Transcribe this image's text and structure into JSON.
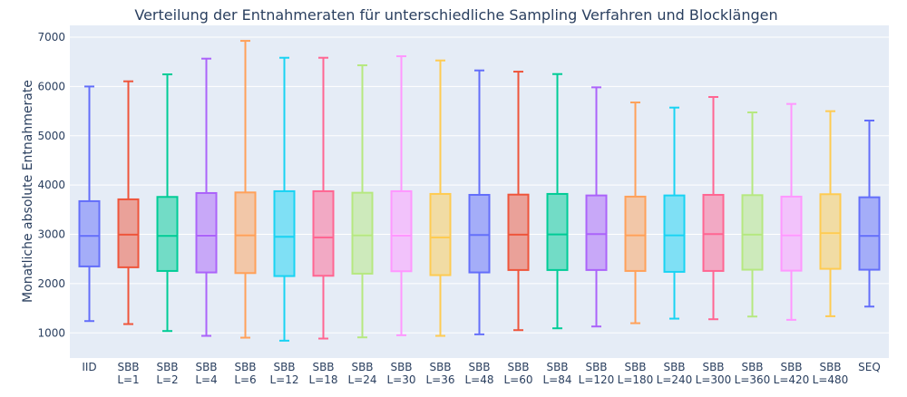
{
  "chart_data": {
    "type": "box",
    "title": "Verteilung der Entnahmeraten für unterschiedliche Sampling Verfahren und Blocklängen",
    "xlabel": "",
    "ylabel": "Monatliche absolute Entnahmerate",
    "ylim": [
      490,
      7240
    ],
    "yticks": [
      1000,
      2000,
      3000,
      4000,
      5000,
      6000,
      7000
    ],
    "grid": true,
    "legend": "none",
    "background": "#e5ecf6",
    "categories": [
      [
        "IID"
      ],
      [
        "SBB",
        "L=1"
      ],
      [
        "SBB",
        "L=2"
      ],
      [
        "SBB",
        "L=4"
      ],
      [
        "SBB",
        "L=6"
      ],
      [
        "SBB",
        "L=12"
      ],
      [
        "SBB",
        "L=18"
      ],
      [
        "SBB",
        "L=24"
      ],
      [
        "SBB",
        "L=30"
      ],
      [
        "SBB",
        "L=36"
      ],
      [
        "SBB",
        "L=48"
      ],
      [
        "SBB",
        "L=60"
      ],
      [
        "SBB",
        "L=84"
      ],
      [
        "SBB",
        "L=120"
      ],
      [
        "SBB",
        "L=180"
      ],
      [
        "SBB",
        "L=240"
      ],
      [
        "SBB",
        "L=300"
      ],
      [
        "SBB",
        "L=360"
      ],
      [
        "SBB",
        "L=420"
      ],
      [
        "SBB",
        "L=480"
      ],
      [
        "SEQ"
      ]
    ],
    "colors": [
      "#636efa",
      "#ef553b",
      "#00cc96",
      "#ab63fa",
      "#ffa15a",
      "#19d3f3",
      "#ff6692",
      "#b6e880",
      "#ff97ff",
      "#fecb52"
    ],
    "boxes": [
      {
        "min": 1240,
        "q1": 2349,
        "median": 2968,
        "q3": 3673,
        "max": 6000
      },
      {
        "min": 1179,
        "q1": 2331,
        "median": 2993,
        "q3": 3710,
        "max": 6105
      },
      {
        "min": 1038,
        "q1": 2257,
        "median": 2968,
        "q3": 3759,
        "max": 6246
      },
      {
        "min": 940,
        "q1": 2227,
        "median": 2974,
        "q3": 3838,
        "max": 6565
      },
      {
        "min": 903,
        "q1": 2214,
        "median": 2980,
        "q3": 3850,
        "max": 6926
      },
      {
        "min": 842,
        "q1": 2153,
        "median": 2950,
        "q3": 3875,
        "max": 6583
      },
      {
        "min": 885,
        "q1": 2159,
        "median": 2937,
        "q3": 3875,
        "max": 6583
      },
      {
        "min": 909,
        "q1": 2202,
        "median": 2980,
        "q3": 3844,
        "max": 6430
      },
      {
        "min": 952,
        "q1": 2251,
        "median": 2974,
        "q3": 3875,
        "max": 6614
      },
      {
        "min": 940,
        "q1": 2172,
        "median": 2937,
        "q3": 3820,
        "max": 6528
      },
      {
        "min": 971,
        "q1": 2227,
        "median": 2987,
        "q3": 3801,
        "max": 6326
      },
      {
        "min": 1056,
        "q1": 2276,
        "median": 2993,
        "q3": 3806,
        "max": 6301
      },
      {
        "min": 1093,
        "q1": 2276,
        "median": 2999,
        "q3": 3820,
        "max": 6252
      },
      {
        "min": 1130,
        "q1": 2276,
        "median": 3005,
        "q3": 3789,
        "max": 5983
      },
      {
        "min": 1197,
        "q1": 2257,
        "median": 2980,
        "q3": 3765,
        "max": 5676
      },
      {
        "min": 1289,
        "q1": 2239,
        "median": 2980,
        "q3": 3789,
        "max": 5572
      },
      {
        "min": 1277,
        "q1": 2257,
        "median": 3005,
        "q3": 3801,
        "max": 5787
      },
      {
        "min": 1332,
        "q1": 2282,
        "median": 2993,
        "q3": 3795,
        "max": 5474
      },
      {
        "min": 1265,
        "q1": 2263,
        "median": 2980,
        "q3": 3765,
        "max": 5646
      },
      {
        "min": 1338,
        "q1": 2300,
        "median": 3023,
        "q3": 3814,
        "max": 5499
      },
      {
        "min": 1534,
        "q1": 2282,
        "median": 2968,
        "q3": 3752,
        "max": 5309
      }
    ]
  }
}
